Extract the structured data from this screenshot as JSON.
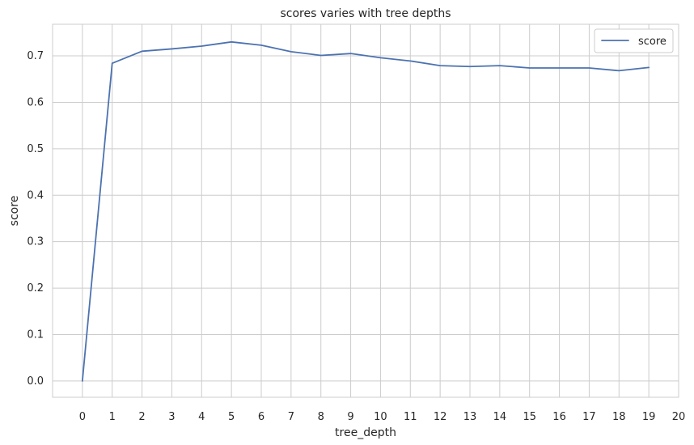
{
  "chart_data": {
    "type": "line",
    "title": "scores varies with tree depths",
    "xlabel": "tree_depth",
    "ylabel": "score",
    "x": [
      0,
      1,
      2,
      3,
      4,
      5,
      6,
      7,
      8,
      9,
      10,
      11,
      12,
      13,
      14,
      15,
      16,
      17,
      18,
      19
    ],
    "series": [
      {
        "name": "score",
        "values": [
          0.0,
          0.684,
          0.71,
          0.715,
          0.721,
          0.73,
          0.723,
          0.709,
          0.701,
          0.705,
          0.696,
          0.689,
          0.679,
          0.677,
          0.679,
          0.674,
          0.674,
          0.674,
          0.668,
          0.675
        ]
      }
    ],
    "xlim": [
      -1,
      20
    ],
    "ylim": [
      -0.035,
      0.768
    ],
    "x_ticks": [
      "0",
      "1",
      "2",
      "3",
      "4",
      "5",
      "6",
      "7",
      "8",
      "9",
      "10",
      "11",
      "12",
      "13",
      "14",
      "15",
      "16",
      "17",
      "18",
      "19",
      "20"
    ],
    "y_ticks": [
      "0.0",
      "0.1",
      "0.2",
      "0.3",
      "0.4",
      "0.5",
      "0.6",
      "0.7"
    ],
    "grid": true,
    "legend_position": "top-right",
    "line_color": "#4c72b0",
    "grid_color": "#cccccc",
    "axes_edge_color": "#cccccc"
  }
}
